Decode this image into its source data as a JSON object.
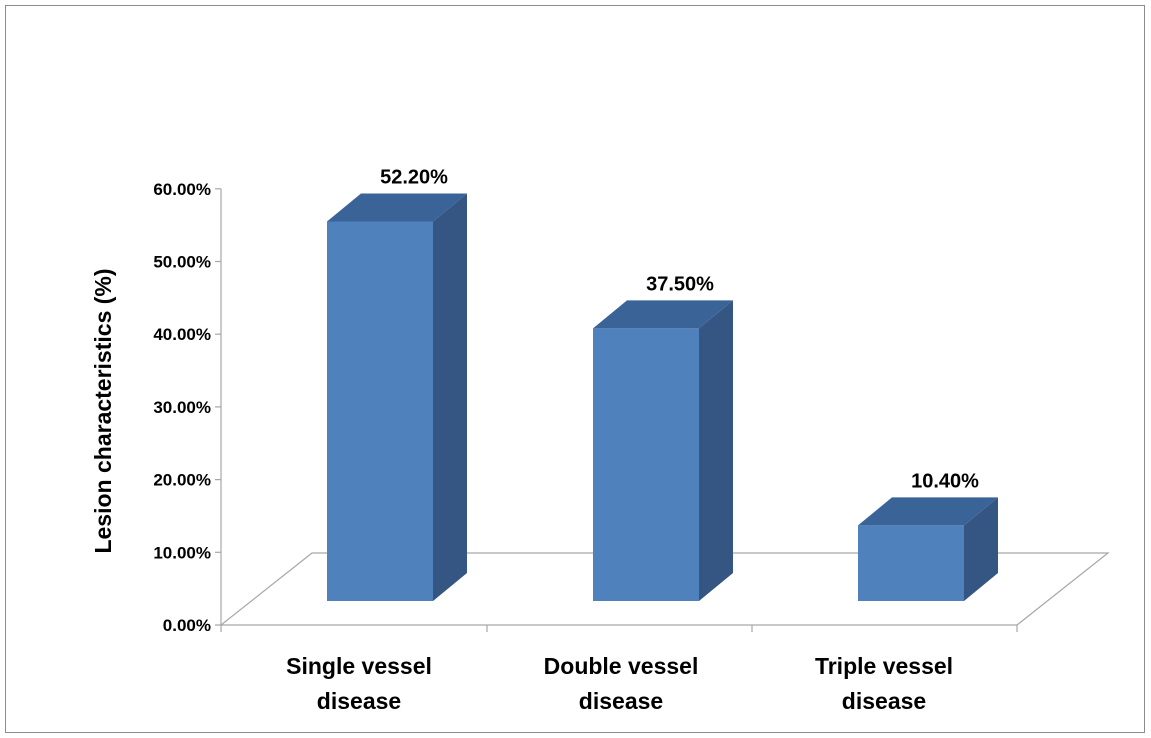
{
  "chart_data": {
    "type": "bar",
    "style": "3d-column",
    "categories": [
      [
        "Single vessel",
        "disease"
      ],
      [
        "Double vessel",
        "disease"
      ],
      [
        "Triple vessel",
        "disease"
      ]
    ],
    "values": [
      52.2,
      37.5,
      10.4
    ],
    "data_labels": [
      "52.20%",
      "37.50%",
      "10.40%"
    ],
    "ylabel": "Lesion characteristics (%)",
    "yticks": [
      "0.00%",
      "10.00%",
      "20.00%",
      "30.00%",
      "40.00%",
      "50.00%",
      "60.00%"
    ],
    "ylim": [
      0,
      60
    ],
    "grid": false,
    "legend": "none",
    "colors": {
      "front": "#4f81bd",
      "side": "#355582",
      "top": "#3a6397",
      "axis": "#a6a6a6"
    }
  }
}
